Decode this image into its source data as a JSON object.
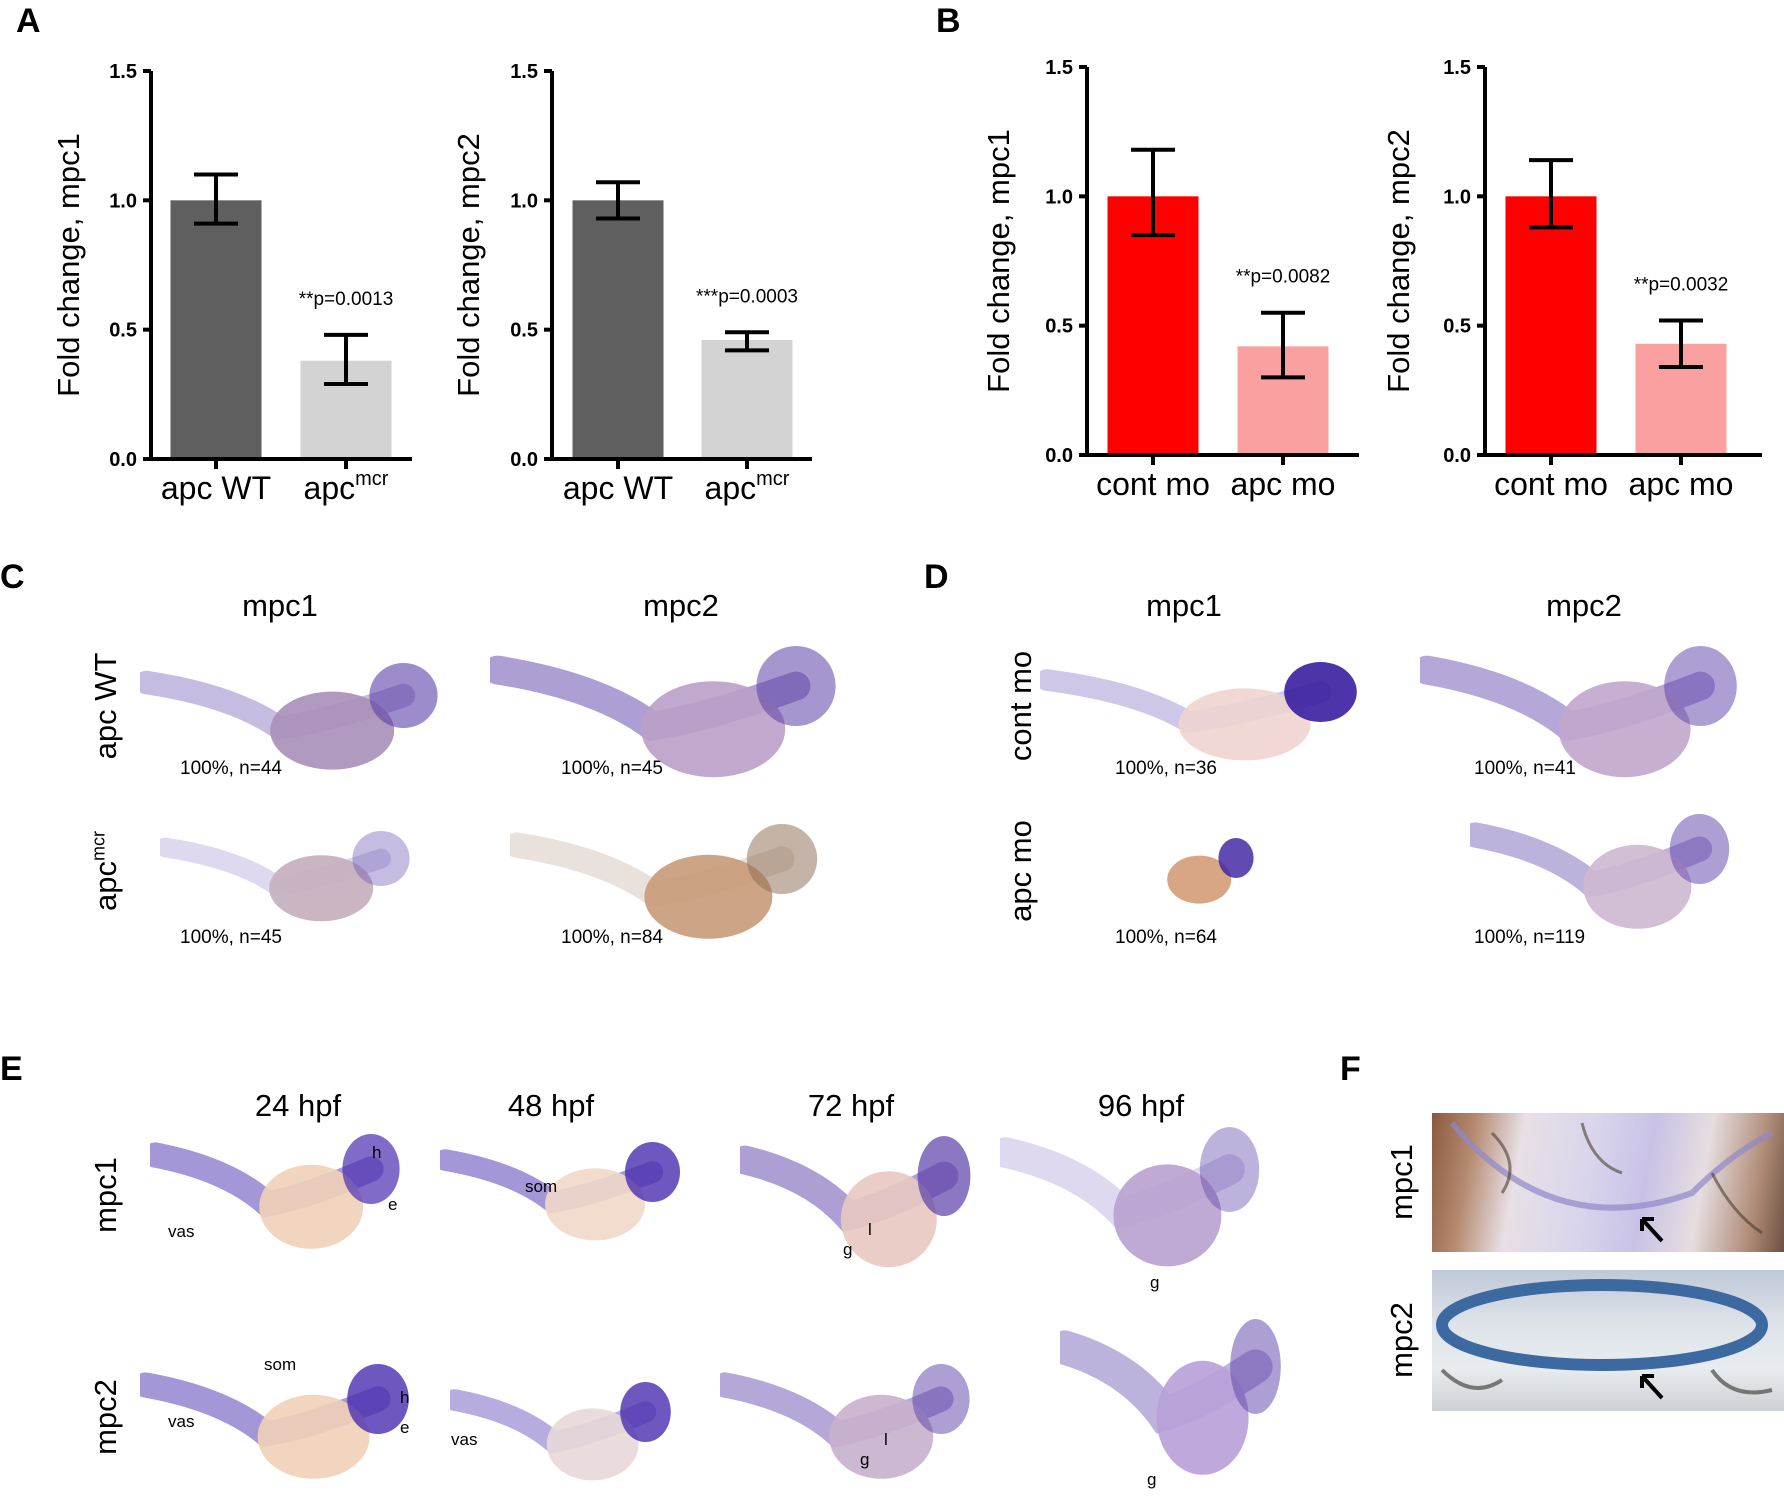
{
  "panels": {
    "A": "A",
    "B": "B",
    "C": "C",
    "D": "D",
    "E": "E",
    "F": "F"
  },
  "chart_data": [
    {
      "id": "A1",
      "type": "bar",
      "ylabel": "Fold change, mpc1",
      "ylim": [
        0,
        1.5
      ],
      "yticks": [
        "0.0",
        "0.5",
        "1.0",
        "1.5"
      ],
      "categories": [
        "apc WT",
        "apc"
      ],
      "category_sup": [
        "",
        "mcr"
      ],
      "values": [
        1.0,
        0.38
      ],
      "err_low": [
        0.91,
        0.29
      ],
      "err_high": [
        1.1,
        0.48
      ],
      "colors": [
        "#5f5f5f",
        "#d3d3d3"
      ],
      "annotation": "**p=0.0013"
    },
    {
      "id": "A2",
      "type": "bar",
      "ylabel": "Fold change, mpc2",
      "ylim": [
        0,
        1.5
      ],
      "yticks": [
        "0.0",
        "0.5",
        "1.0",
        "1.5"
      ],
      "categories": [
        "apc WT",
        "apc"
      ],
      "category_sup": [
        "",
        "mcr"
      ],
      "values": [
        1.0,
        0.46
      ],
      "err_low": [
        0.93,
        0.42
      ],
      "err_high": [
        1.07,
        0.49
      ],
      "colors": [
        "#5f5f5f",
        "#d3d3d3"
      ],
      "annotation": "***p=0.0003"
    },
    {
      "id": "B1",
      "type": "bar",
      "ylabel": "Fold change, mpc1",
      "ylim": [
        0,
        1.5
      ],
      "yticks": [
        "0.0",
        "0.5",
        "1.0",
        "1.5"
      ],
      "categories": [
        "cont mo",
        "apc mo"
      ],
      "category_sup": [
        "",
        ""
      ],
      "values": [
        1.0,
        0.42
      ],
      "err_low": [
        0.85,
        0.3
      ],
      "err_high": [
        1.18,
        0.55
      ],
      "colors": [
        "#fe0000",
        "#fba0a0"
      ],
      "annotation": "**p=0.0082"
    },
    {
      "id": "B2",
      "type": "bar",
      "ylabel": "Fold change, mpc2",
      "ylim": [
        0,
        1.5
      ],
      "yticks": [
        "0.0",
        "0.5",
        "1.0",
        "1.5"
      ],
      "categories": [
        "cont mo",
        "apc mo"
      ],
      "category_sup": [
        "",
        ""
      ],
      "values": [
        1.0,
        0.43
      ],
      "err_low": [
        0.88,
        0.34
      ],
      "err_high": [
        1.14,
        0.52
      ],
      "colors": [
        "#fe0000",
        "#fba0a0"
      ],
      "annotation": "**p=0.0032"
    }
  ],
  "panelC": {
    "cols": [
      "mpc1",
      "mpc2"
    ],
    "rows": [
      "apc WT",
      "apc"
    ],
    "row2_sup": "mcr",
    "stats": [
      "100%, n=44",
      "100%, n=45",
      "100%, n=45",
      "100%, n=84"
    ]
  },
  "panelD": {
    "cols": [
      "mpc1",
      "mpc2"
    ],
    "rows": [
      "cont  mo",
      "apc mo"
    ],
    "stats": [
      "100%, n=36",
      "100%, n=41",
      "100%, n=64",
      "100%, n=119"
    ]
  },
  "panelE": {
    "cols": [
      "24 hpf",
      "48 hpf",
      "72 hpf",
      "96 hpf"
    ],
    "rows": [
      "mpc1",
      "mpc2"
    ],
    "annotations": {
      "vas": "vas",
      "som": "som",
      "h": "h",
      "e": "e",
      "g": "g",
      "l": "l"
    }
  },
  "panelF": {
    "rows": [
      "mpc1",
      "mpc2"
    ]
  }
}
